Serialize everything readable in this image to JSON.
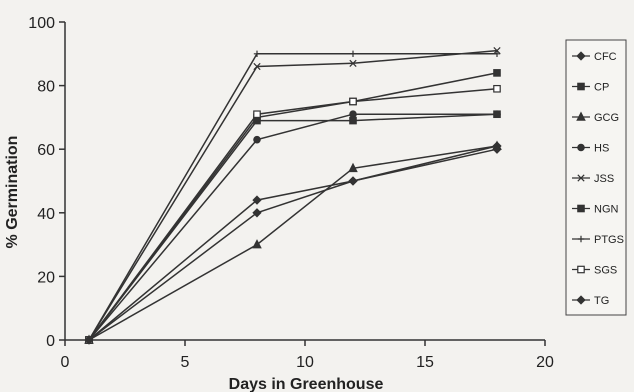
{
  "chart_data": {
    "type": "line",
    "title": "",
    "xlabel": "Days in Greenhouse",
    "ylabel": "% Germination",
    "xlim": [
      0,
      20
    ],
    "ylim": [
      0,
      100
    ],
    "xticks": [
      0,
      5,
      10,
      15,
      20
    ],
    "yticks": [
      0,
      20,
      40,
      60,
      80,
      100
    ],
    "grid": false,
    "legend_position": "right",
    "x": [
      1,
      8,
      12,
      18
    ],
    "series": [
      {
        "name": "CFC",
        "marker": "diamond",
        "values": [
          0,
          44,
          50,
          61
        ]
      },
      {
        "name": "CP",
        "marker": "square",
        "values": [
          0,
          69,
          69,
          71
        ]
      },
      {
        "name": "GCG",
        "marker": "triangle",
        "values": [
          0,
          30,
          54,
          61
        ]
      },
      {
        "name": "HS",
        "marker": "circle",
        "values": [
          0,
          63,
          71,
          71
        ]
      },
      {
        "name": "JSS",
        "marker": "x",
        "values": [
          0,
          86,
          87,
          91
        ]
      },
      {
        "name": "NGN",
        "marker": "square",
        "values": [
          0,
          70,
          75,
          84
        ]
      },
      {
        "name": "PTGS",
        "marker": "plus",
        "values": [
          0,
          90,
          90,
          90
        ]
      },
      {
        "name": "SGS",
        "marker": "square-open",
        "values": [
          0,
          71,
          75,
          79
        ]
      },
      {
        "name": "TG",
        "marker": "diamond",
        "values": [
          0,
          40,
          50,
          60
        ]
      }
    ]
  }
}
